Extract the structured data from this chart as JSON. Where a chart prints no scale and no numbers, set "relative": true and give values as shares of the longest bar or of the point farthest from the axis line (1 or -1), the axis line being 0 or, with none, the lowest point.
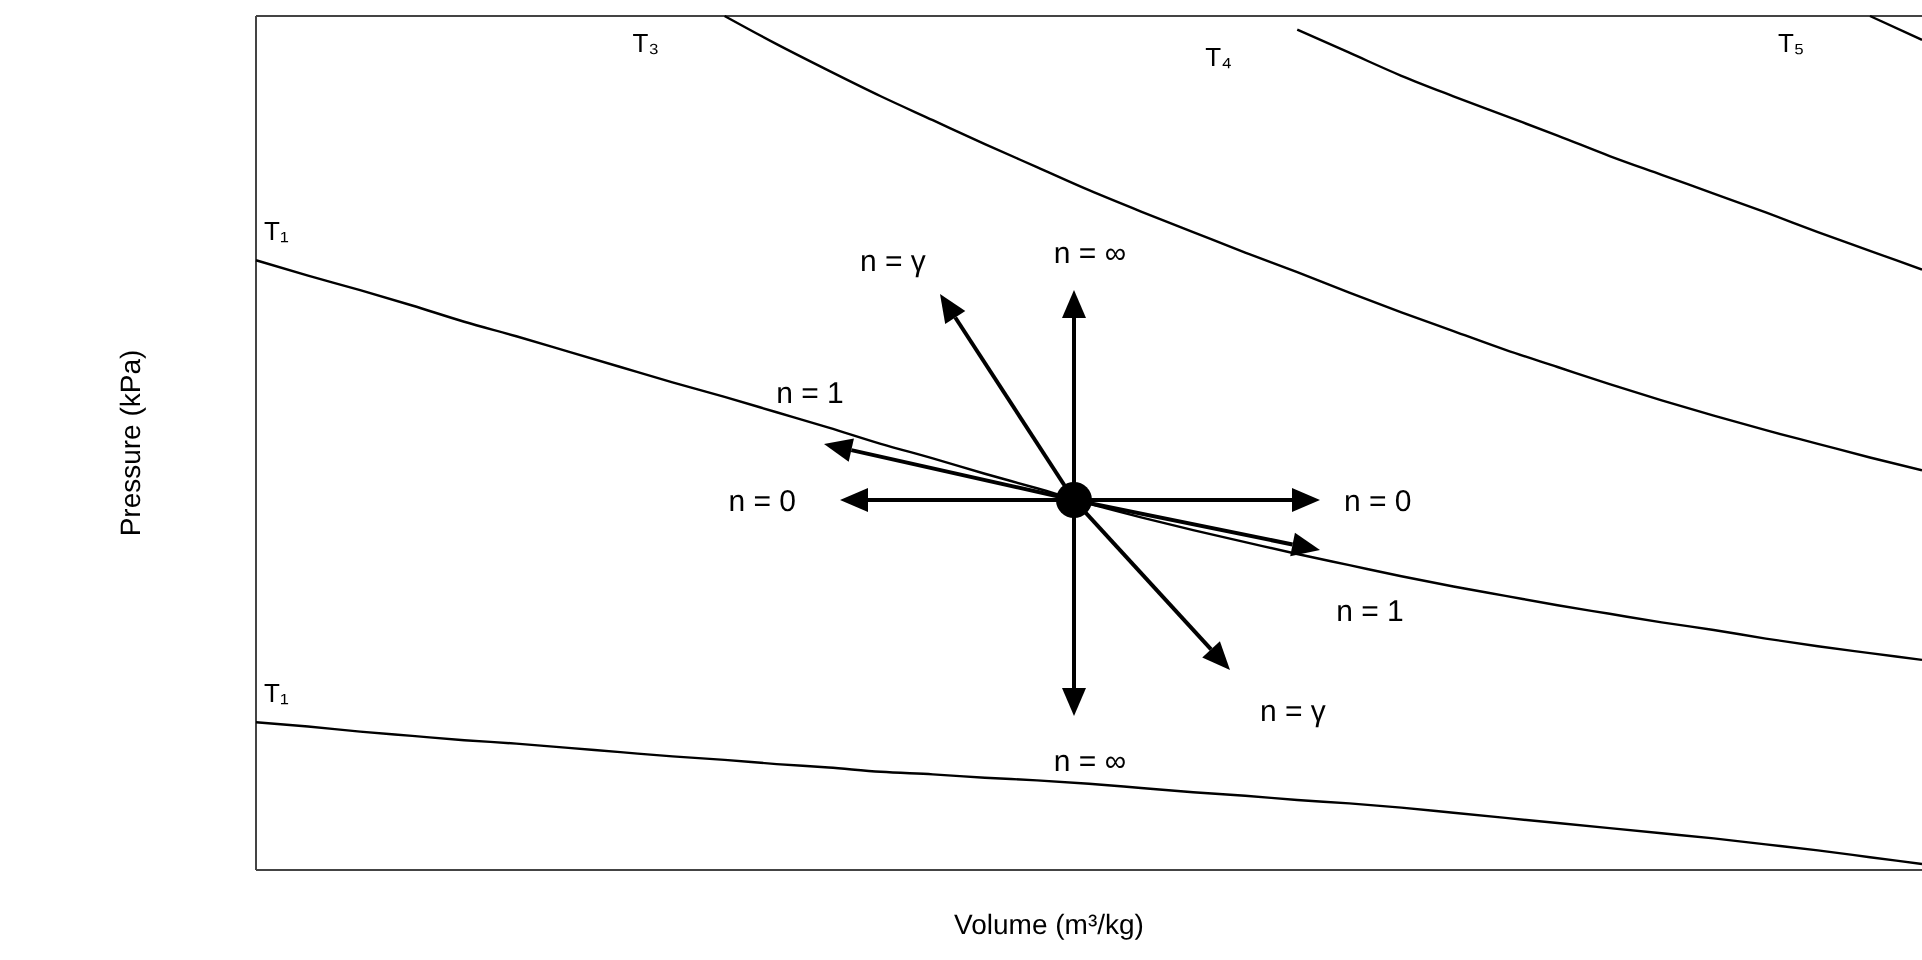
{
  "chart_data": {
    "type": "line",
    "relative": true,
    "xlabel": "Volume (m³/kg)",
    "ylabel": "Pressure (kPa)",
    "categories": [
      null,
      null,
      null,
      null,
      null,
      null,
      null,
      null,
      null,
      null,
      null,
      null,
      null,
      null,
      null,
      null,
      null,
      null,
      null,
      null,
      null,
      null,
      null,
      null,
      null,
      null,
      null,
      null,
      null,
      null,
      null,
      null,
      null
    ],
    "series": [
      {
        "name": "T₁",
        "color": "#000000",
        "values": [
          0.173,
          0.168,
          0.162,
          0.157,
          0.152,
          0.148,
          0.143,
          0.138,
          0.133,
          0.129,
          0.124,
          0.12,
          0.115,
          0.112,
          0.108,
          0.105,
          0.101,
          0.096,
          0.091,
          0.087,
          0.082,
          0.078,
          0.073,
          0.067,
          0.061,
          0.055,
          0.049,
          0.043,
          0.037,
          0.03,
          0.023,
          0.015,
          0.007
        ]
      },
      {
        "name": "T₁",
        "color": "#000000",
        "values": [
          0.714,
          0.696,
          0.679,
          0.661,
          0.642,
          0.625,
          0.607,
          0.589,
          0.571,
          0.554,
          0.536,
          0.518,
          0.499,
          0.482,
          0.464,
          0.447,
          0.429,
          0.413,
          0.398,
          0.384,
          0.37,
          0.357,
          0.344,
          0.332,
          0.321,
          0.31,
          0.3,
          0.29,
          0.281,
          0.271,
          0.262,
          0.254,
          0.246
        ]
      },
      {
        "name": "T₃",
        "color": "#000000",
        "values": [
          null,
          null,
          null,
          null,
          null,
          null,
          null,
          null,
          null,
          1.0,
          0.967,
          0.936,
          0.906,
          0.878,
          0.85,
          0.823,
          0.796,
          0.771,
          0.747,
          0.723,
          0.7,
          0.676,
          0.653,
          0.631,
          0.609,
          0.589,
          0.569,
          0.55,
          0.532,
          0.515,
          0.499,
          0.483,
          0.468
        ]
      },
      {
        "name": "T₄",
        "color": "#000000",
        "values": [
          null,
          null,
          null,
          null,
          null,
          null,
          null,
          null,
          null,
          null,
          null,
          null,
          null,
          null,
          null,
          null,
          null,
          null,
          null,
          null,
          0.984,
          0.957,
          0.93,
          0.906,
          0.883,
          0.86,
          0.836,
          0.814,
          0.792,
          0.77,
          0.747,
          0.725,
          0.703
        ]
      },
      {
        "name": "T₅",
        "color": "#000000",
        "values": [
          null,
          null,
          null,
          null,
          null,
          null,
          null,
          null,
          null,
          null,
          null,
          null,
          null,
          null,
          null,
          null,
          null,
          null,
          null,
          null,
          null,
          null,
          null,
          null,
          null,
          null,
          null,
          null,
          null,
          null,
          null,
          1.0,
          0.972
        ]
      }
    ],
    "annotations": [
      "n = γ",
      "n = ∞",
      "n = 1",
      "n = 0",
      "n = 0",
      "n = 1",
      "n = γ",
      "n = ∞"
    ],
    "marker": "none",
    "line_style": "solid"
  }
}
